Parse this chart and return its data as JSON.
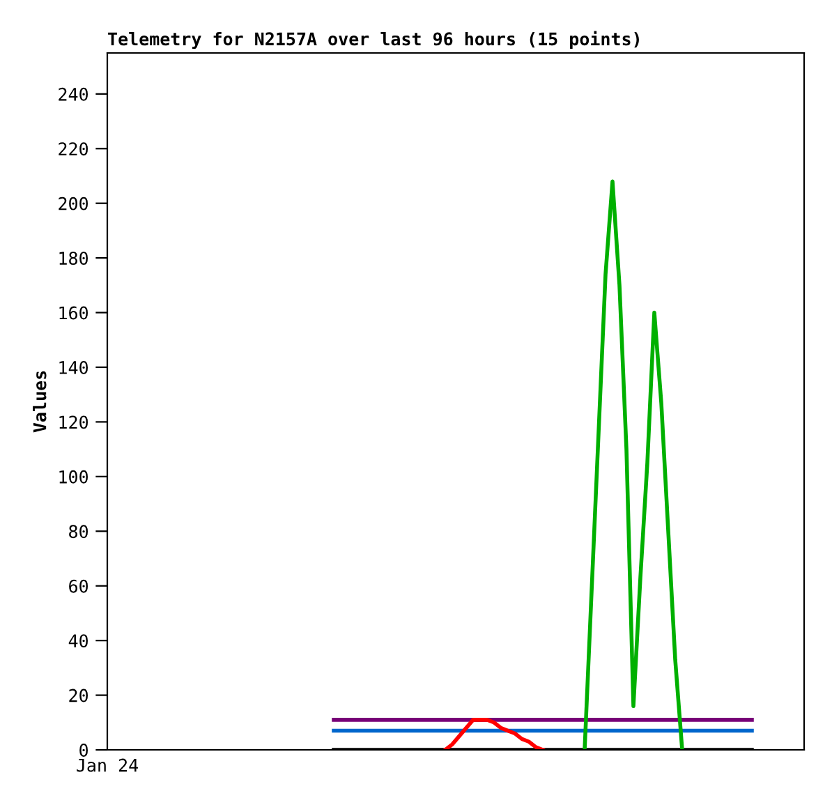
{
  "chart_data": {
    "type": "line",
    "title": "Telemetry for N2157A over last 96 hours (15 points)",
    "ylabel": "Values",
    "annotations": [
      "Jan 24"
    ],
    "categories": [
      null,
      null,
      null,
      null,
      null,
      null,
      null,
      null,
      null,
      null,
      null,
      null,
      null,
      null,
      null,
      null,
      null,
      null,
      null,
      null,
      null,
      null,
      null,
      null,
      null,
      null,
      null,
      null,
      null,
      null,
      null,
      null,
      null,
      null,
      null,
      null,
      null,
      null,
      null,
      null,
      null,
      null,
      null,
      null,
      null,
      null,
      null,
      null,
      null,
      null,
      null,
      null,
      null,
      null,
      null,
      null,
      null,
      null,
      null,
      null,
      null,
      null,
      null,
      null,
      null,
      null,
      null,
      null,
      null,
      null,
      null,
      null,
      null,
      null,
      null,
      null,
      null,
      null,
      null,
      null,
      null,
      null,
      null,
      null,
      null,
      null,
      null,
      null,
      null,
      null,
      null,
      null,
      null,
      null,
      null,
      null,
      null,
      null,
      null,
      null
    ],
    "ylim": [
      0,
      255
    ],
    "yticks": [
      0,
      20,
      40,
      60,
      80,
      100,
      120,
      140,
      160,
      180,
      200,
      220,
      240
    ],
    "grid": false,
    "legend": false,
    "marker": "none",
    "line_style": "solid",
    "series": [
      {
        "color": "#000000",
        "values": [
          null,
          null,
          null,
          null,
          null,
          null,
          null,
          null,
          null,
          null,
          null,
          null,
          null,
          null,
          null,
          null,
          null,
          null,
          null,
          null,
          null,
          null,
          null,
          null,
          null,
          null,
          null,
          null,
          null,
          null,
          null,
          null,
          0,
          0,
          0,
          0,
          0,
          0,
          0,
          0,
          0,
          0,
          0,
          0,
          0,
          0,
          0,
          0,
          0,
          0,
          0,
          0,
          0,
          0,
          0,
          0,
          0,
          0,
          0,
          0,
          0,
          0,
          0,
          0,
          0,
          0,
          0,
          0,
          0,
          0,
          0,
          0,
          0,
          0,
          0,
          0,
          0,
          0,
          0,
          0,
          0,
          0,
          0,
          0,
          0,
          0,
          0,
          0,
          0,
          0,
          0,
          0,
          0,
          null,
          null,
          null,
          null,
          null,
          null,
          null
        ]
      },
      {
        "color": "#0066cc",
        "values": [
          null,
          null,
          null,
          null,
          null,
          null,
          null,
          null,
          null,
          null,
          null,
          null,
          null,
          null,
          null,
          null,
          null,
          null,
          null,
          null,
          null,
          null,
          null,
          null,
          null,
          null,
          null,
          null,
          null,
          null,
          null,
          null,
          7,
          7,
          7,
          7,
          7,
          7,
          7,
          7,
          7,
          7,
          7,
          7,
          7,
          7,
          7,
          7,
          7,
          7,
          7,
          7,
          7,
          7,
          7,
          7,
          7,
          7,
          7,
          7,
          7,
          7,
          7,
          7,
          7,
          7,
          7,
          7,
          7,
          7,
          7,
          7,
          7,
          7,
          7,
          7,
          7,
          7,
          7,
          7,
          7,
          7,
          7,
          7,
          7,
          7,
          7,
          7,
          7,
          7,
          7,
          7,
          7,
          null,
          null,
          null,
          null,
          null,
          null,
          null
        ]
      },
      {
        "color": "#770077",
        "values": [
          null,
          null,
          null,
          null,
          null,
          null,
          null,
          null,
          null,
          null,
          null,
          null,
          null,
          null,
          null,
          null,
          null,
          null,
          null,
          null,
          null,
          null,
          null,
          null,
          null,
          null,
          null,
          null,
          null,
          null,
          null,
          null,
          11,
          11,
          11,
          11,
          11,
          11,
          11,
          11,
          11,
          11,
          11,
          11,
          11,
          11,
          11,
          11,
          11,
          11,
          11,
          11,
          11,
          11,
          11,
          11,
          11,
          11,
          11,
          11,
          11,
          11,
          11,
          11,
          11,
          11,
          11,
          11,
          11,
          11,
          11,
          11,
          11,
          11,
          11,
          11,
          11,
          11,
          11,
          11,
          11,
          11,
          11,
          11,
          11,
          11,
          11,
          11,
          11,
          11,
          11,
          11,
          11,
          null,
          null,
          null,
          null,
          null,
          null,
          null
        ]
      },
      {
        "color": "#ff0000",
        "values": [
          null,
          null,
          null,
          null,
          null,
          null,
          null,
          null,
          null,
          null,
          null,
          null,
          null,
          null,
          null,
          null,
          null,
          null,
          null,
          null,
          null,
          null,
          null,
          null,
          null,
          null,
          null,
          null,
          null,
          null,
          null,
          null,
          null,
          null,
          null,
          null,
          null,
          null,
          null,
          null,
          null,
          null,
          null,
          null,
          null,
          null,
          null,
          null,
          0,
          2,
          5,
          8,
          11,
          11,
          11,
          10,
          8,
          7,
          6,
          4,
          3,
          1,
          0,
          null,
          null,
          null,
          null,
          null,
          null,
          null,
          null,
          null,
          null,
          null,
          null,
          null,
          null,
          null,
          null,
          null,
          null,
          null,
          null,
          null,
          null,
          null,
          null,
          null,
          null,
          null,
          null,
          null,
          null,
          null,
          null,
          null,
          null,
          null,
          null,
          null
        ]
      },
      {
        "color": "#00b000",
        "values": [
          null,
          null,
          null,
          null,
          null,
          null,
          null,
          null,
          null,
          null,
          null,
          null,
          null,
          null,
          null,
          null,
          null,
          null,
          null,
          null,
          null,
          null,
          null,
          null,
          null,
          null,
          null,
          null,
          null,
          null,
          null,
          null,
          null,
          null,
          null,
          null,
          null,
          null,
          null,
          null,
          null,
          null,
          null,
          null,
          null,
          null,
          null,
          null,
          null,
          null,
          null,
          null,
          null,
          null,
          null,
          null,
          null,
          null,
          null,
          null,
          null,
          null,
          null,
          null,
          null,
          null,
          null,
          null,
          0,
          58,
          116,
          174,
          208,
          170,
          110,
          16,
          63,
          105,
          160,
          127,
          80,
          33,
          0,
          null,
          null,
          null,
          null,
          null,
          null,
          null,
          null,
          null,
          null,
          null,
          null,
          null,
          null,
          null,
          null,
          null
        ]
      }
    ]
  }
}
